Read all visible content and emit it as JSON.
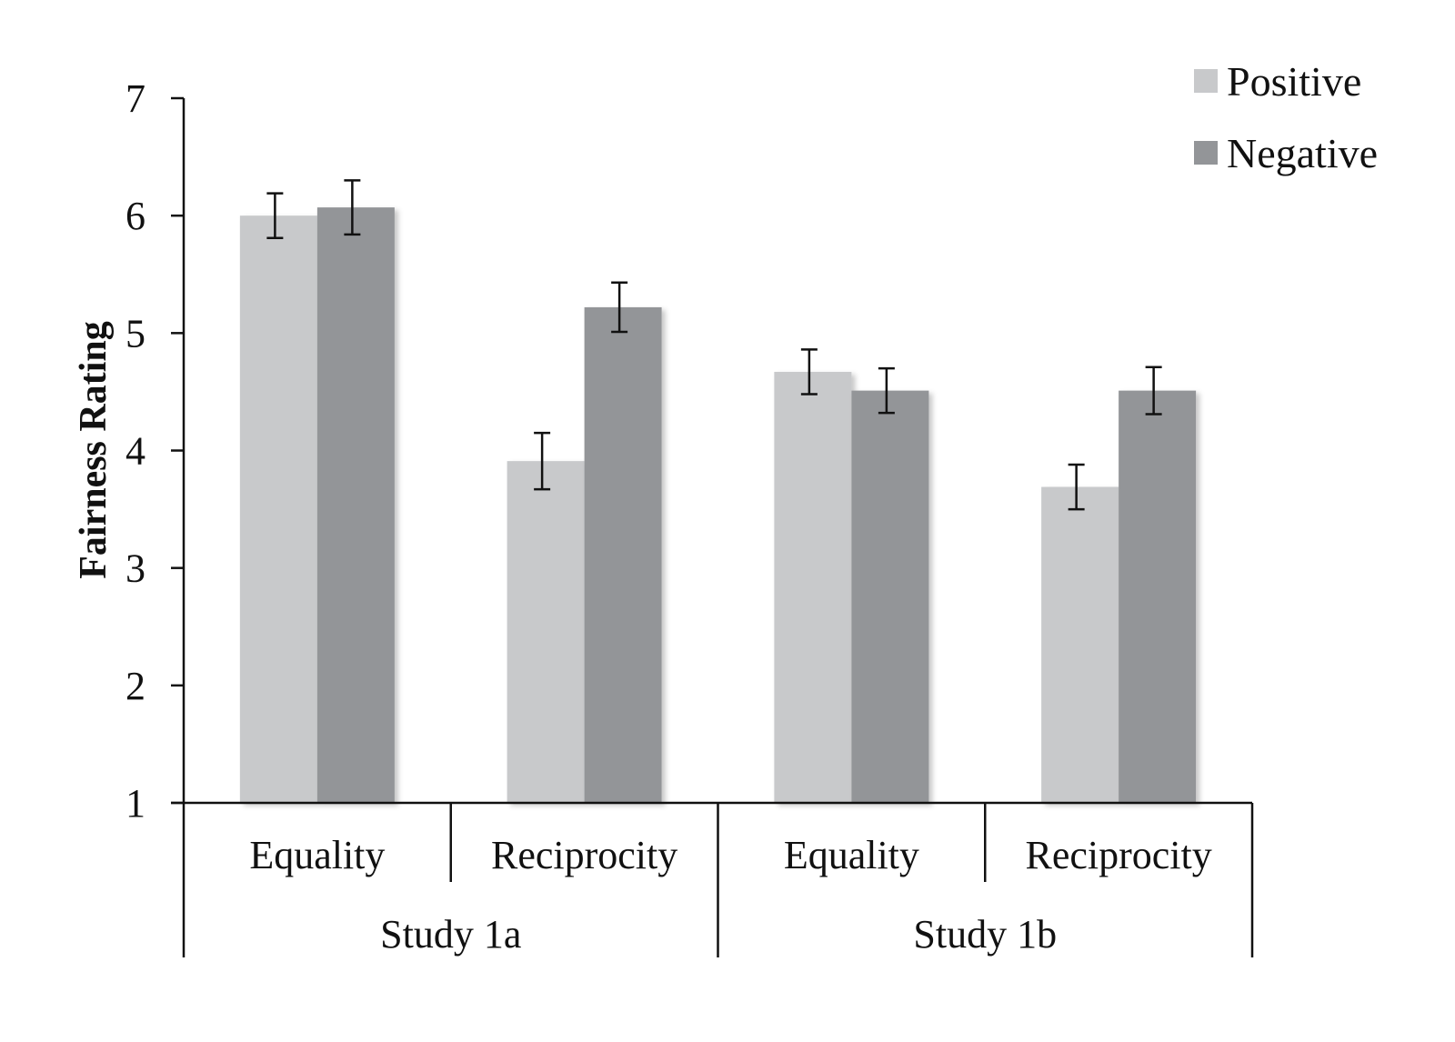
{
  "chart_data": {
    "type": "bar",
    "title": "",
    "ylabel": "Fairness Rating",
    "xlabel": "",
    "ylim": [
      1,
      7
    ],
    "yticks": [
      1,
      2,
      3,
      4,
      5,
      6,
      7
    ],
    "categories": [
      "Equality",
      "Reciprocity",
      "Equality",
      "Reciprocity"
    ],
    "groups": [
      {
        "label": "Study 1a",
        "span": [
          0,
          1
        ]
      },
      {
        "label": "Study 1b",
        "span": [
          2,
          3
        ]
      }
    ],
    "series": [
      {
        "name": "Positive",
        "color": "#c8c9cb",
        "values": [
          6.0,
          3.91,
          4.67,
          3.69
        ],
        "errors": [
          0.19,
          0.24,
          0.19,
          0.19
        ]
      },
      {
        "name": "Negative",
        "color": "#939598",
        "values": [
          6.07,
          5.22,
          4.51,
          4.51
        ],
        "errors": [
          0.23,
          0.21,
          0.19,
          0.2
        ]
      }
    ],
    "legend_position": "top-right",
    "grid": false
  }
}
